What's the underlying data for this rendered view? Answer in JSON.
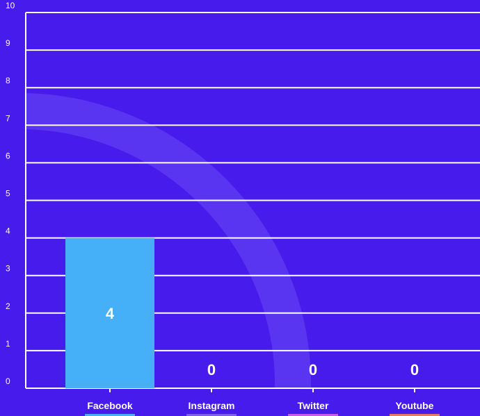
{
  "chart_data": {
    "type": "bar",
    "categories": [
      "Facebook",
      "Instagram",
      "Twitter",
      "Youtube"
    ],
    "values": [
      4,
      0,
      0,
      0
    ],
    "ylim": [
      0,
      10
    ],
    "yticks": [
      0,
      1,
      2,
      3,
      4,
      5,
      6,
      7,
      8,
      9,
      10
    ],
    "grid": true,
    "title": "",
    "xlabel": "",
    "ylabel": ""
  },
  "colors": {
    "background": "#461bec",
    "arc": "#6a4af5",
    "grid": "#ffffff",
    "series": [
      "#45b0f8",
      "#7f5cf0",
      "#c25cf0",
      "#e07a6a"
    ]
  }
}
